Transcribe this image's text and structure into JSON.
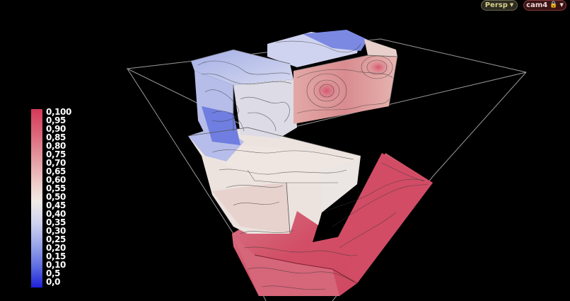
{
  "toolbar": {
    "view_mode_label": "Persp",
    "camera_label": "cam4"
  },
  "legend": {
    "labels": [
      "0,100",
      "0,95",
      "0,90",
      "0,85",
      "0,80",
      "0,75",
      "0,70",
      "0,65",
      "0,60",
      "0,55",
      "0,50",
      "0,45",
      "0,40",
      "0,35",
      "0,30",
      "0,25",
      "0,20",
      "0,15",
      "0,10",
      "0,5",
      "0,0"
    ],
    "colors": {
      "max": "#d33a58",
      "mid": "#f0ebe6",
      "min": "#1d1fd8"
    }
  },
  "icons": {
    "dropdown": "caret-down-icon",
    "lock": "lock-icon"
  }
}
